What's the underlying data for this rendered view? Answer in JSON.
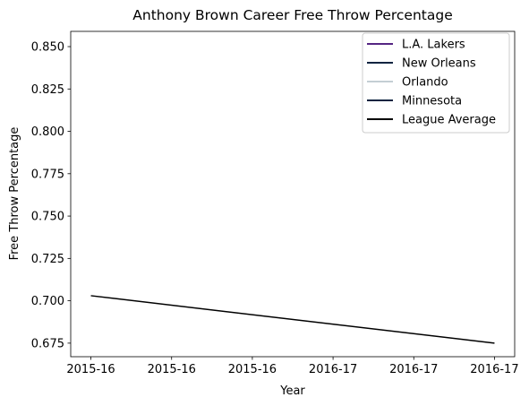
{
  "chart_data": {
    "type": "line",
    "title": "Anthony Brown  Career Free Throw Percentage",
    "xlabel": "Year",
    "ylabel": "Free Throw Percentage",
    "x_tick_labels": [
      "2015-16",
      "2015-16",
      "2015-16",
      "2016-17",
      "2016-17",
      "2016-17"
    ],
    "y_ticks": [
      0.675,
      0.7,
      0.725,
      0.75,
      0.775,
      0.8,
      0.825,
      0.85
    ],
    "y_tick_labels": [
      "0.675",
      "0.700",
      "0.725",
      "0.750",
      "0.775",
      "0.800",
      "0.825",
      "0.850"
    ],
    "xlim": [
      -0.25,
      5.25
    ],
    "ylim": [
      0.667,
      0.859
    ],
    "grid": false,
    "legend_position": "top-right",
    "series": [
      {
        "name": "L.A. Lakers",
        "color": "#552583",
        "x": [],
        "y": []
      },
      {
        "name": "New Orleans",
        "color": "#0C2340",
        "x": [],
        "y": []
      },
      {
        "name": "Orlando",
        "color": "#C4CED4",
        "x": [],
        "y": []
      },
      {
        "name": "Minnesota",
        "color": "#0C2340",
        "x": [],
        "y": []
      },
      {
        "name": "League Average",
        "color": "#000000",
        "x": [
          0,
          5
        ],
        "y": [
          0.703,
          0.675
        ]
      }
    ]
  }
}
